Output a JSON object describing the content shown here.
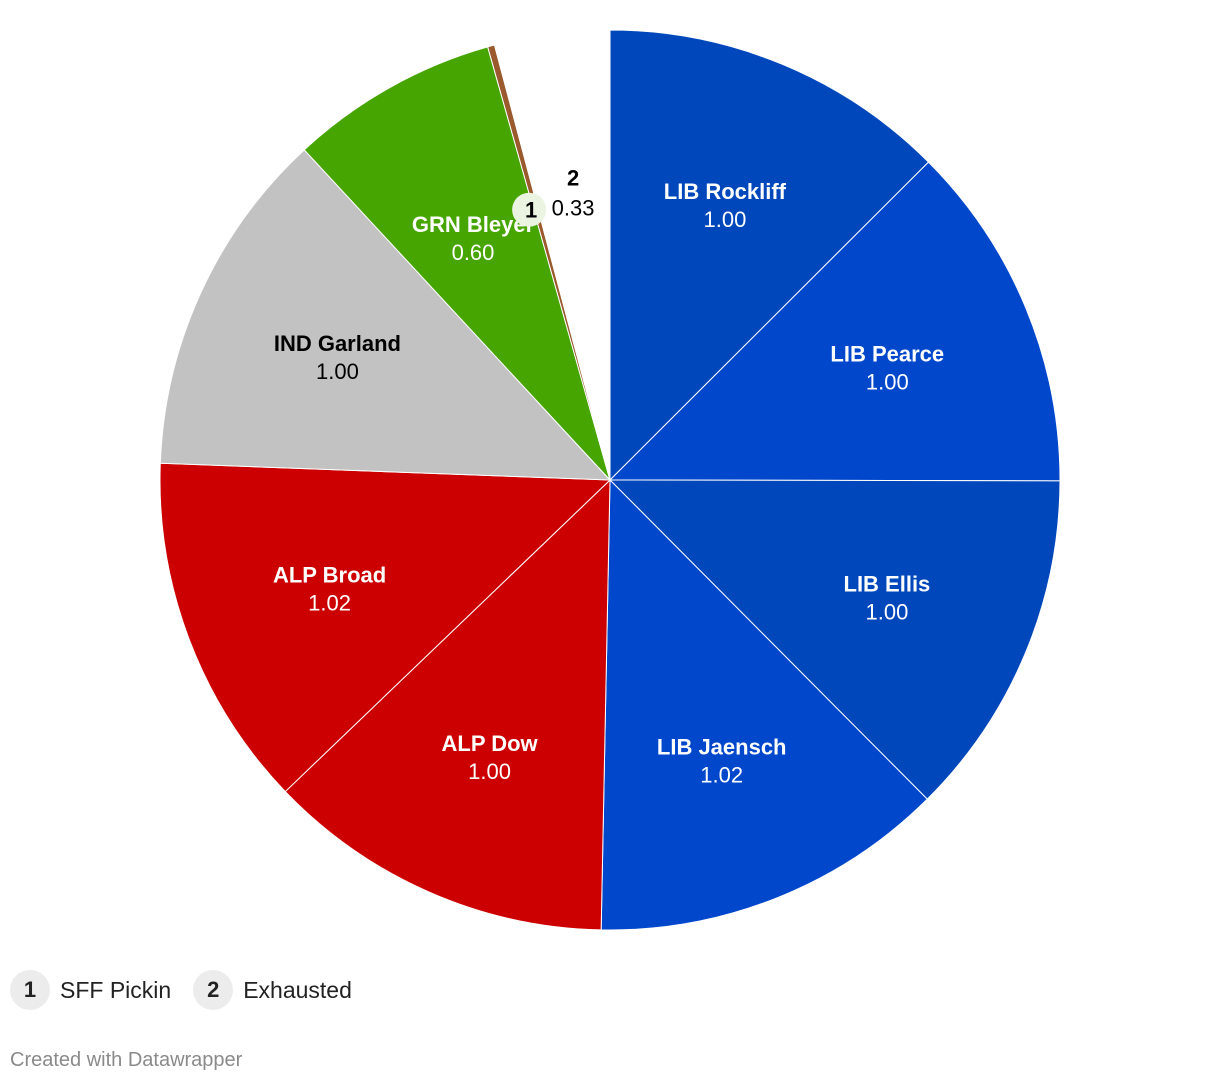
{
  "chart_data": {
    "type": "pie",
    "slices": [
      {
        "name": "LIB Rockliff",
        "value": 1.0,
        "label": "1.00",
        "color": "#0047bb",
        "text_color": "#ffffff"
      },
      {
        "name": "LIB Pearce",
        "value": 1.0,
        "label": "1.00",
        "color": "#0047cc",
        "text_color": "#ffffff"
      },
      {
        "name": "LIB Ellis",
        "value": 1.0,
        "label": "1.00",
        "color": "#0047bb",
        "text_color": "#ffffff"
      },
      {
        "name": "LIB Jaensch",
        "value": 1.02,
        "label": "1.02",
        "color": "#0047cc",
        "text_color": "#ffffff"
      },
      {
        "name": "ALP Dow",
        "value": 1.0,
        "label": "1.00",
        "color": "#cc0000",
        "text_color": "#ffffff"
      },
      {
        "name": "ALP Broad",
        "value": 1.02,
        "label": "1.02",
        "color": "#cc0000",
        "text_color": "#ffffff"
      },
      {
        "name": "IND Garland",
        "value": 1.0,
        "label": "1.00",
        "color": "#c2c2c2",
        "text_color": "#000000"
      },
      {
        "name": "GRN Bleyer",
        "value": 0.6,
        "label": "0.60",
        "color": "#46a500",
        "text_color": "#ffffff"
      },
      {
        "name": "SFF Pickin",
        "value": 0.02,
        "label": "",
        "color": "#9a5a2e",
        "text_color": "#000000",
        "marker": "1"
      },
      {
        "name": "Exhausted",
        "value": 0.33,
        "label": "0.33",
        "color": "#ffffff",
        "text_color": "#000000",
        "marker": "2"
      }
    ]
  },
  "legend": [
    {
      "marker": "1",
      "label": "SFF Pickin"
    },
    {
      "marker": "2",
      "label": "Exhausted"
    }
  ],
  "credit": "Created with Datawrapper"
}
